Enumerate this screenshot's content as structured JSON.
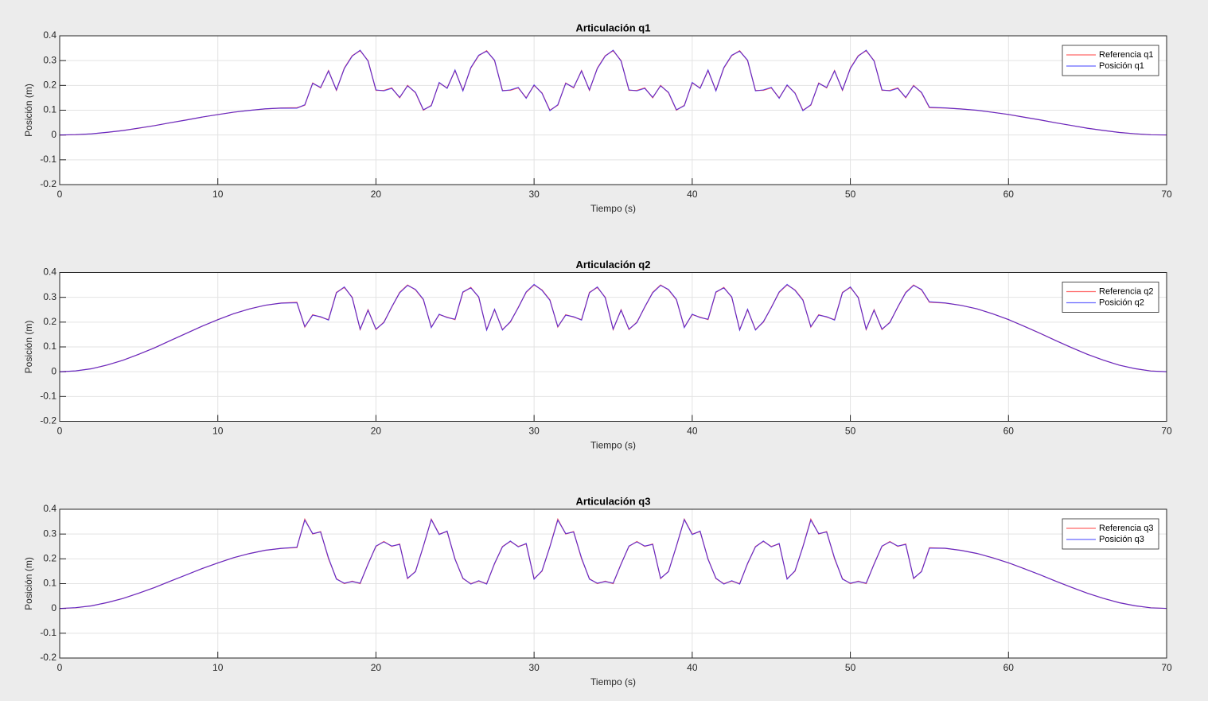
{
  "chart_data": [
    {
      "type": "line",
      "title": "Articulación q1",
      "xlabel": "Tiempo (s)",
      "ylabel": "Posición (m)",
      "x": [
        0,
        1,
        2,
        3,
        4,
        5,
        6,
        7,
        8,
        9,
        10,
        11,
        12,
        13,
        14,
        15,
        15.5,
        16,
        16.5,
        17,
        17.5,
        18,
        18.5,
        19,
        19.5,
        20,
        20.5,
        21,
        21.5,
        22,
        22.5,
        23,
        23.5,
        24,
        24.5,
        25,
        25.5,
        26,
        26.5,
        27,
        27.5,
        28,
        28.5,
        29,
        29.5,
        30,
        30.5,
        31,
        31.5,
        32,
        32.5,
        33,
        33.5,
        34,
        34.5,
        35,
        35.5,
        36,
        36.5,
        37,
        37.5,
        38,
        38.5,
        39,
        39.5,
        40,
        40.5,
        41,
        41.5,
        42,
        42.5,
        43,
        43.5,
        44,
        44.5,
        45,
        45.5,
        46,
        46.5,
        47,
        47.5,
        48,
        48.5,
        49,
        49.5,
        50,
        50.5,
        51,
        51.5,
        52,
        52.5,
        53,
        53.5,
        54,
        54.5,
        55,
        56,
        57,
        58,
        59,
        60,
        61,
        62,
        63,
        64,
        65,
        66,
        67,
        68,
        69,
        70
      ],
      "series": [
        {
          "name": "Referencia q1",
          "color": "#ff0000",
          "values": [
            0,
            0.0012,
            0.0048,
            0.0105,
            0.0182,
            0.0275,
            0.038,
            0.0493,
            0.0607,
            0.072,
            0.0825,
            0.0918,
            0.0995,
            0.1052,
            0.1088,
            0.11,
            0.12,
            0.21,
            0.19,
            0.26,
            0.18,
            0.27,
            0.32,
            0.34,
            0.3,
            0.18,
            0.18,
            0.19,
            0.15,
            0.2,
            0.17,
            0.1,
            0.12,
            0.21,
            0.19,
            0.26,
            0.18,
            0.27,
            0.32,
            0.34,
            0.3,
            0.18,
            0.18,
            0.19,
            0.15,
            0.2,
            0.17,
            0.1,
            0.12,
            0.21,
            0.19,
            0.26,
            0.18,
            0.27,
            0.32,
            0.34,
            0.3,
            0.18,
            0.18,
            0.19,
            0.15,
            0.2,
            0.17,
            0.1,
            0.12,
            0.21,
            0.19,
            0.26,
            0.18,
            0.27,
            0.32,
            0.34,
            0.3,
            0.18,
            0.18,
            0.19,
            0.15,
            0.2,
            0.17,
            0.1,
            0.12,
            0.21,
            0.19,
            0.26,
            0.18,
            0.27,
            0.32,
            0.34,
            0.3,
            0.18,
            0.18,
            0.19,
            0.15,
            0.2,
            0.17,
            0.11,
            0.1088,
            0.1052,
            0.0995,
            0.0918,
            0.0825,
            0.072,
            0.0607,
            0.0493,
            0.038,
            0.0275,
            0.0182,
            0.0105,
            0.0048,
            0.0012,
            0
          ]
        },
        {
          "name": "Posición q1",
          "color": "#0000ff",
          "values": [
            0,
            0.0015,
            0.0045,
            0.011,
            0.0178,
            0.028,
            0.0376,
            0.0497,
            0.0603,
            0.0724,
            0.0821,
            0.0922,
            0.0991,
            0.1056,
            0.1085,
            0.108,
            0.122,
            0.208,
            0.192,
            0.258,
            0.182,
            0.268,
            0.318,
            0.342,
            0.298,
            0.182,
            0.178,
            0.188,
            0.152,
            0.198,
            0.172,
            0.102,
            0.118,
            0.212,
            0.188,
            0.262,
            0.178,
            0.272,
            0.322,
            0.338,
            0.302,
            0.178,
            0.182,
            0.192,
            0.148,
            0.202,
            0.168,
            0.098,
            0.122,
            0.208,
            0.192,
            0.258,
            0.182,
            0.268,
            0.318,
            0.342,
            0.298,
            0.182,
            0.178,
            0.188,
            0.152,
            0.198,
            0.172,
            0.102,
            0.118,
            0.212,
            0.188,
            0.262,
            0.178,
            0.272,
            0.322,
            0.338,
            0.302,
            0.178,
            0.182,
            0.192,
            0.148,
            0.202,
            0.168,
            0.098,
            0.122,
            0.208,
            0.192,
            0.258,
            0.182,
            0.268,
            0.318,
            0.342,
            0.298,
            0.182,
            0.178,
            0.188,
            0.152,
            0.198,
            0.172,
            0.112,
            0.1092,
            0.1048,
            0.0999,
            0.0914,
            0.0829,
            0.0716,
            0.0611,
            0.0489,
            0.0384,
            0.0271,
            0.0186,
            0.0101,
            0.0052,
            0.0008,
            0.0003
          ]
        }
      ],
      "xlim": [
        0,
        70
      ],
      "ylim": [
        -0.2,
        0.4
      ],
      "xticks": [
        0,
        10,
        20,
        30,
        40,
        50,
        60,
        70
      ],
      "yticks": [
        -0.2,
        -0.1,
        0,
        0.1,
        0.2,
        0.3,
        0.4
      ],
      "grid": true,
      "legend": "upper right"
    },
    {
      "type": "line",
      "title": "Articulación q2",
      "xlabel": "Tiempo (s)",
      "ylabel": "Posición (m)",
      "x": [
        0,
        1,
        2,
        3,
        4,
        5,
        6,
        7,
        8,
        9,
        10,
        11,
        12,
        13,
        14,
        15,
        15.5,
        16,
        16.5,
        17,
        17.5,
        18,
        18.5,
        19,
        19.5,
        20,
        20.5,
        21,
        21.5,
        22,
        22.5,
        23,
        23.5,
        24,
        24.5,
        25,
        25.5,
        26,
        26.5,
        27,
        27.5,
        28,
        28.5,
        29,
        29.5,
        30,
        30.5,
        31,
        31.5,
        32,
        32.5,
        33,
        33.5,
        34,
        34.5,
        35,
        35.5,
        36,
        36.5,
        37,
        37.5,
        38,
        38.5,
        39,
        39.5,
        40,
        40.5,
        41,
        41.5,
        42,
        42.5,
        43,
        43.5,
        44,
        44.5,
        45,
        45.5,
        46,
        46.5,
        47,
        47.5,
        48,
        48.5,
        49,
        49.5,
        50,
        50.5,
        51,
        51.5,
        52,
        52.5,
        53,
        53.5,
        54,
        54.5,
        55,
        56,
        57,
        58,
        59,
        60,
        61,
        62,
        63,
        64,
        65,
        66,
        67,
        68,
        69,
        70
      ],
      "series": [
        {
          "name": "Referencia q2",
          "color": "#ff0000",
          "values": [
            0,
            0.0031,
            0.0121,
            0.0267,
            0.0463,
            0.07,
            0.0967,
            0.1254,
            0.1546,
            0.1833,
            0.21,
            0.2337,
            0.2533,
            0.2679,
            0.2769,
            0.28,
            0.18,
            0.23,
            0.22,
            0.21,
            0.32,
            0.34,
            0.3,
            0.17,
            0.25,
            0.17,
            0.2,
            0.26,
            0.32,
            0.35,
            0.33,
            0.29,
            0.18,
            0.23,
            0.22,
            0.21,
            0.32,
            0.34,
            0.3,
            0.17,
            0.25,
            0.17,
            0.2,
            0.26,
            0.32,
            0.35,
            0.33,
            0.29,
            0.18,
            0.23,
            0.22,
            0.21,
            0.32,
            0.34,
            0.3,
            0.17,
            0.25,
            0.17,
            0.2,
            0.26,
            0.32,
            0.35,
            0.33,
            0.29,
            0.18,
            0.23,
            0.22,
            0.21,
            0.32,
            0.34,
            0.3,
            0.17,
            0.25,
            0.17,
            0.2,
            0.26,
            0.32,
            0.35,
            0.33,
            0.29,
            0.18,
            0.23,
            0.22,
            0.21,
            0.32,
            0.34,
            0.3,
            0.17,
            0.25,
            0.17,
            0.2,
            0.26,
            0.32,
            0.35,
            0.33,
            0.28,
            0.2769,
            0.2679,
            0.2533,
            0.2337,
            0.21,
            0.1833,
            0.1546,
            0.1254,
            0.0967,
            0.07,
            0.0463,
            0.0267,
            0.0121,
            0.0031,
            0
          ]
        },
        {
          "name": "Posición q2",
          "color": "#0000ff",
          "values": [
            0,
            0.0034,
            0.0118,
            0.0271,
            0.0459,
            0.0704,
            0.0963,
            0.1258,
            0.1542,
            0.1837,
            0.2096,
            0.2341,
            0.2529,
            0.2683,
            0.2765,
            0.278,
            0.182,
            0.228,
            0.222,
            0.208,
            0.318,
            0.342,
            0.298,
            0.172,
            0.248,
            0.172,
            0.198,
            0.262,
            0.318,
            0.348,
            0.332,
            0.292,
            0.178,
            0.232,
            0.218,
            0.212,
            0.322,
            0.338,
            0.302,
            0.168,
            0.252,
            0.168,
            0.202,
            0.258,
            0.322,
            0.352,
            0.328,
            0.288,
            0.182,
            0.228,
            0.222,
            0.208,
            0.318,
            0.342,
            0.298,
            0.172,
            0.248,
            0.172,
            0.198,
            0.262,
            0.318,
            0.348,
            0.332,
            0.292,
            0.178,
            0.232,
            0.218,
            0.212,
            0.322,
            0.338,
            0.302,
            0.168,
            0.252,
            0.168,
            0.202,
            0.258,
            0.322,
            0.352,
            0.328,
            0.288,
            0.182,
            0.228,
            0.222,
            0.208,
            0.318,
            0.342,
            0.298,
            0.172,
            0.248,
            0.172,
            0.198,
            0.262,
            0.318,
            0.348,
            0.332,
            0.282,
            0.2773,
            0.2675,
            0.2537,
            0.2333,
            0.2104,
            0.1829,
            0.155,
            0.125,
            0.0971,
            0.0696,
            0.0467,
            0.0263,
            0.0125,
            0.0027,
            0.0002
          ]
        }
      ],
      "xlim": [
        0,
        70
      ],
      "ylim": [
        -0.2,
        0.4
      ],
      "xticks": [
        0,
        10,
        20,
        30,
        40,
        50,
        60,
        70
      ],
      "yticks": [
        -0.2,
        -0.1,
        0,
        0.1,
        0.2,
        0.3,
        0.4
      ],
      "grid": true,
      "legend": "upper right"
    },
    {
      "type": "line",
      "title": "Articulación q3",
      "xlabel": "Tiempo (s)",
      "ylabel": "Posición (m)",
      "x": [
        0,
        1,
        2,
        3,
        4,
        5,
        6,
        7,
        8,
        9,
        10,
        11,
        12,
        13,
        14,
        15,
        15.5,
        16,
        16.5,
        17,
        17.5,
        18,
        18.5,
        19,
        19.5,
        20,
        20.5,
        21,
        21.5,
        22,
        22.5,
        23,
        23.5,
        24,
        24.5,
        25,
        25.5,
        26,
        26.5,
        27,
        27.5,
        28,
        28.5,
        29,
        29.5,
        30,
        30.5,
        31,
        31.5,
        32,
        32.5,
        33,
        33.5,
        34,
        34.5,
        35,
        35.5,
        36,
        36.5,
        37,
        37.5,
        38,
        38.5,
        39,
        39.5,
        40,
        40.5,
        41,
        41.5,
        42,
        42.5,
        43,
        43.5,
        44,
        44.5,
        45,
        45.5,
        46,
        46.5,
        47,
        47.5,
        48,
        48.5,
        49,
        49.5,
        50,
        50.5,
        51,
        51.5,
        52,
        52.5,
        53,
        53.5,
        54,
        54.5,
        55,
        56,
        57,
        58,
        59,
        60,
        61,
        62,
        63,
        64,
        65,
        66,
        67,
        68,
        69,
        70
      ],
      "series": [
        {
          "name": "Referencia q3",
          "color": "#ff0000",
          "values": [
            0,
            0.0027,
            0.0106,
            0.0234,
            0.0405,
            0.0613,
            0.0846,
            0.1097,
            0.1353,
            0.1604,
            0.1838,
            0.2045,
            0.2216,
            0.2344,
            0.2423,
            0.245,
            0.36,
            0.3,
            0.31,
            0.2,
            0.12,
            0.1,
            0.11,
            0.1,
            0.18,
            0.25,
            0.27,
            0.25,
            0.26,
            0.12,
            0.15,
            0.25,
            0.36,
            0.3,
            0.31,
            0.2,
            0.12,
            0.1,
            0.11,
            0.1,
            0.18,
            0.25,
            0.27,
            0.25,
            0.26,
            0.12,
            0.15,
            0.25,
            0.36,
            0.3,
            0.31,
            0.2,
            0.12,
            0.1,
            0.11,
            0.1,
            0.18,
            0.25,
            0.27,
            0.25,
            0.26,
            0.12,
            0.15,
            0.25,
            0.36,
            0.3,
            0.31,
            0.2,
            0.12,
            0.1,
            0.11,
            0.1,
            0.18,
            0.25,
            0.27,
            0.25,
            0.26,
            0.12,
            0.15,
            0.25,
            0.36,
            0.3,
            0.31,
            0.2,
            0.12,
            0.1,
            0.11,
            0.1,
            0.18,
            0.25,
            0.27,
            0.25,
            0.26,
            0.12,
            0.15,
            0.245,
            0.2423,
            0.2344,
            0.2216,
            0.2045,
            0.1838,
            0.1604,
            0.1353,
            0.1097,
            0.0846,
            0.0613,
            0.0405,
            0.0234,
            0.0106,
            0.0027,
            0
          ]
        },
        {
          "name": "Posición q3",
          "color": "#0000ff",
          "values": [
            0,
            0.0031,
            0.0102,
            0.0238,
            0.0401,
            0.0617,
            0.0842,
            0.1101,
            0.1349,
            0.1608,
            0.1834,
            0.2049,
            0.2212,
            0.2348,
            0.2419,
            0.247,
            0.356,
            0.302,
            0.308,
            0.204,
            0.118,
            0.102,
            0.108,
            0.102,
            0.178,
            0.252,
            0.268,
            0.252,
            0.258,
            0.122,
            0.148,
            0.252,
            0.358,
            0.298,
            0.312,
            0.198,
            0.122,
            0.098,
            0.112,
            0.098,
            0.182,
            0.248,
            0.272,
            0.248,
            0.262,
            0.118,
            0.152,
            0.248,
            0.356,
            0.302,
            0.308,
            0.204,
            0.118,
            0.102,
            0.108,
            0.102,
            0.178,
            0.252,
            0.268,
            0.252,
            0.258,
            0.122,
            0.148,
            0.252,
            0.358,
            0.298,
            0.312,
            0.198,
            0.122,
            0.098,
            0.112,
            0.098,
            0.182,
            0.248,
            0.272,
            0.248,
            0.262,
            0.118,
            0.152,
            0.248,
            0.356,
            0.302,
            0.308,
            0.204,
            0.118,
            0.102,
            0.108,
            0.102,
            0.178,
            0.252,
            0.268,
            0.252,
            0.258,
            0.122,
            0.148,
            0.243,
            0.2427,
            0.234,
            0.222,
            0.2041,
            0.1842,
            0.16,
            0.1357,
            0.1093,
            0.085,
            0.0609,
            0.0409,
            0.023,
            0.011,
            0.0023,
            0.0003
          ]
        }
      ],
      "xlim": [
        0,
        70
      ],
      "ylim": [
        -0.2,
        0.4
      ],
      "xticks": [
        0,
        10,
        20,
        30,
        40,
        50,
        60,
        70
      ],
      "yticks": [
        -0.2,
        -0.1,
        0,
        0.1,
        0.2,
        0.3,
        0.4
      ],
      "grid": true,
      "legend": "upper right"
    }
  ]
}
